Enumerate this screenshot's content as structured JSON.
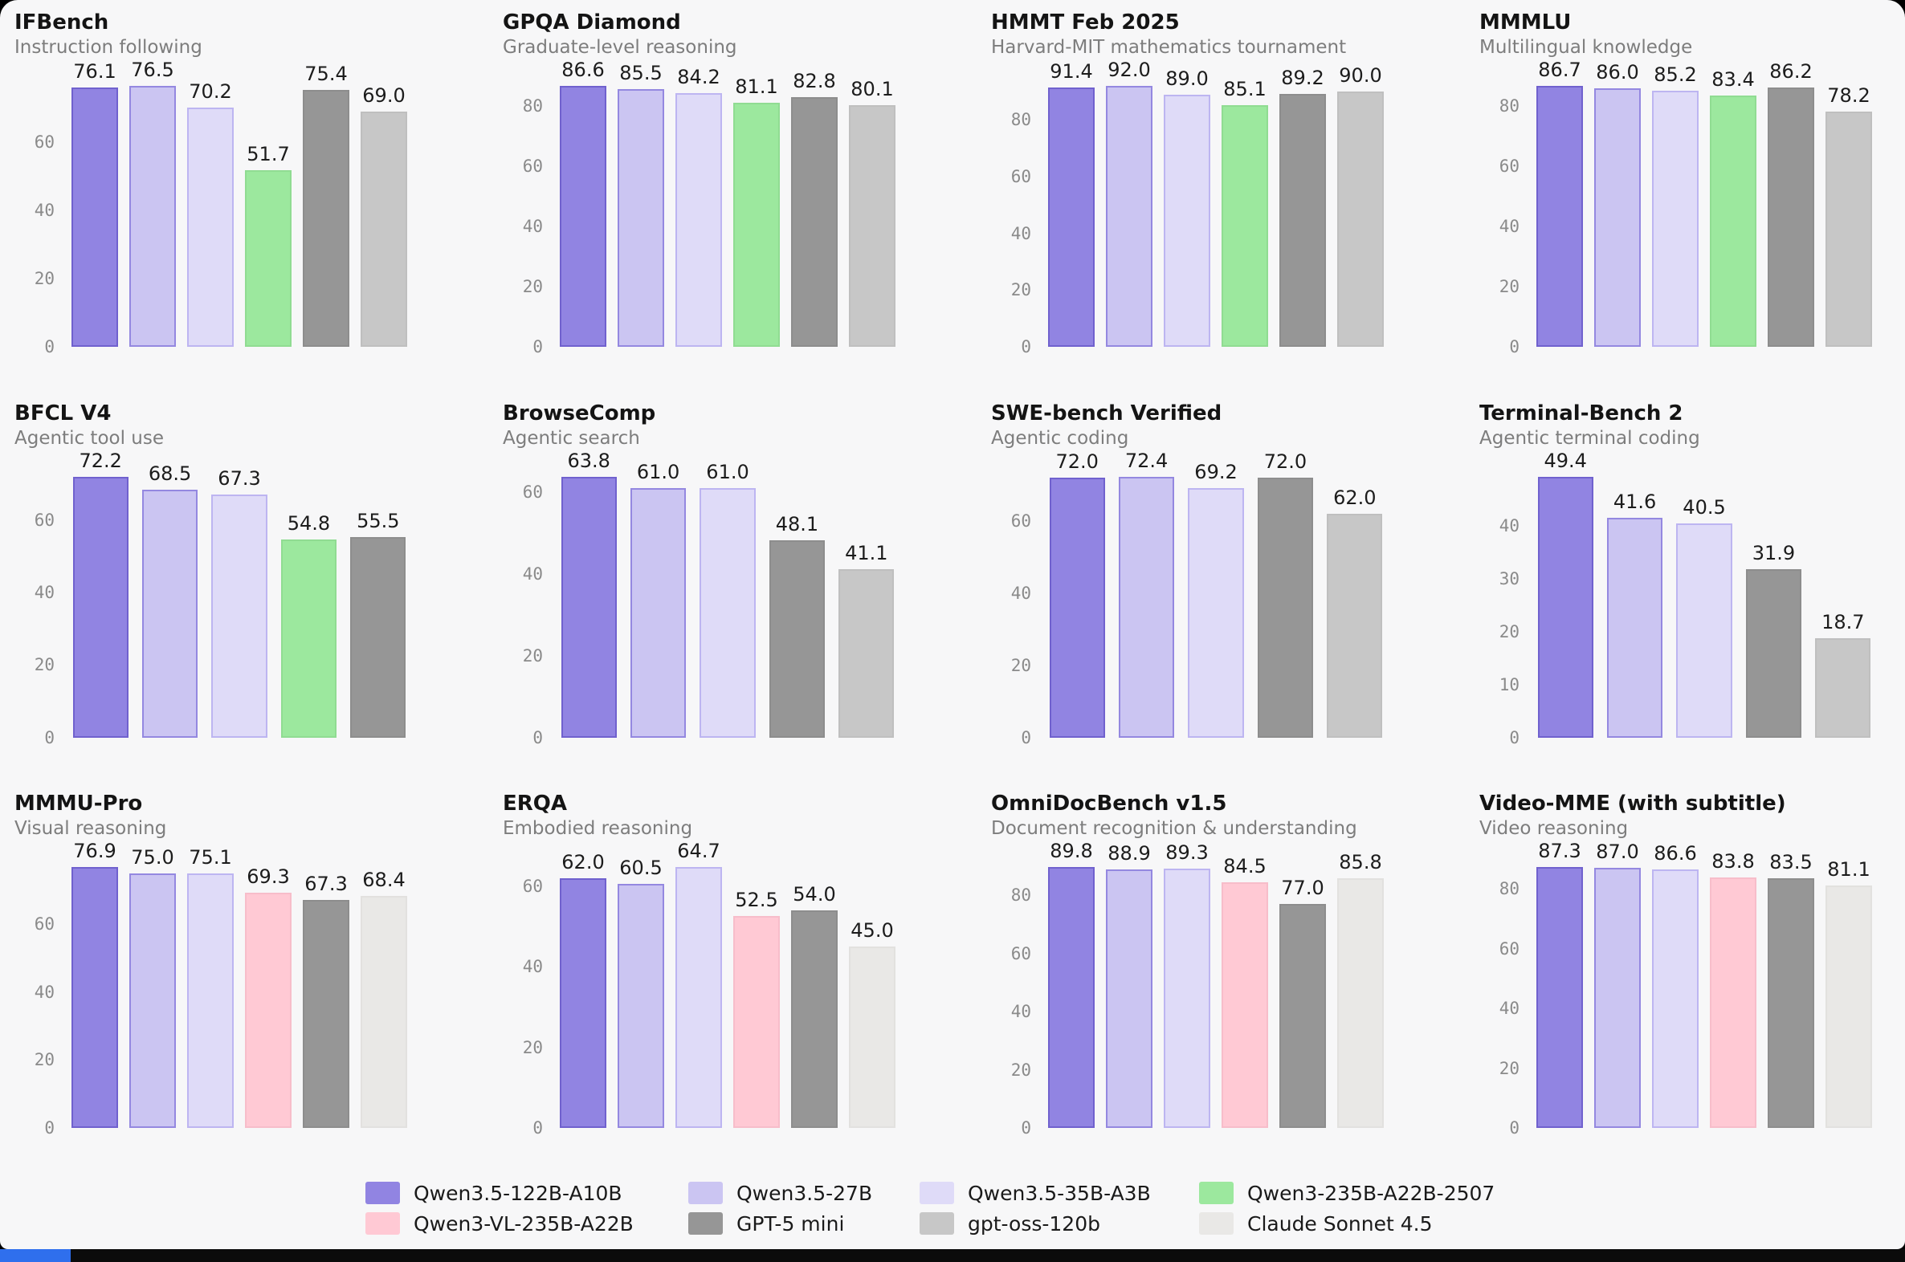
{
  "page": {
    "background": "#f7f7f8",
    "taskbar_color": "#0b0b0b",
    "taskbar_accent_color": "#2f6fed"
  },
  "models": [
    {
      "name": "Qwen3.5-122B-A10B",
      "fill": "#9184e2",
      "edge": "#7061ce"
    },
    {
      "name": "Qwen3.5-27B",
      "fill": "#cbc5f2",
      "edge": "#9488e0"
    },
    {
      "name": "Qwen3.5-35B-A3B",
      "fill": "#dfdbf8",
      "edge": "#bdb5f1"
    },
    {
      "name": "Qwen3-235B-A22B-2507",
      "fill": "#9ce89e",
      "edge": "#90dc92"
    },
    {
      "name": "Qwen3-VL-235B-A22B",
      "fill": "#ffc9d4",
      "edge": "#f7bdca"
    },
    {
      "name": "GPT-5 mini",
      "fill": "#969696",
      "edge": "#8d8d8d"
    },
    {
      "name": "gpt-oss-120b",
      "fill": "#c7c7c7",
      "edge": "#bfbfbf"
    },
    {
      "name": "Claude Sonnet 4.5",
      "fill": "#e9e8e6",
      "edge": "#e2e1df"
    }
  ],
  "chart_data": [
    {
      "type": "bar",
      "title": "IFBench",
      "subtitle": "Instruction following",
      "tick_step": 20,
      "categories": [
        "Qwen3.5-122B-A10B",
        "Qwen3.5-27B",
        "Qwen3.5-35B-A3B",
        "Qwen3-235B-A22B-2507",
        "GPT-5 mini",
        "gpt-oss-120b"
      ],
      "values": [
        76.1,
        76.5,
        70.2,
        51.7,
        75.4,
        69.0
      ]
    },
    {
      "type": "bar",
      "title": "GPQA Diamond",
      "subtitle": "Graduate-level reasoning",
      "tick_step": 20,
      "categories": [
        "Qwen3.5-122B-A10B",
        "Qwen3.5-27B",
        "Qwen3.5-35B-A3B",
        "Qwen3-235B-A22B-2507",
        "GPT-5 mini",
        "gpt-oss-120b"
      ],
      "values": [
        86.6,
        85.5,
        84.2,
        81.1,
        82.8,
        80.1
      ]
    },
    {
      "type": "bar",
      "title": "HMMT Feb 2025",
      "subtitle": "Harvard-MIT mathematics tournament",
      "tick_step": 20,
      "categories": [
        "Qwen3.5-122B-A10B",
        "Qwen3.5-27B",
        "Qwen3.5-35B-A3B",
        "Qwen3-235B-A22B-2507",
        "GPT-5 mini",
        "gpt-oss-120b"
      ],
      "values": [
        91.4,
        92.0,
        89.0,
        85.1,
        89.2,
        90.0
      ]
    },
    {
      "type": "bar",
      "title": "MMMLU",
      "subtitle": "Multilingual knowledge",
      "tick_step": 20,
      "categories": [
        "Qwen3.5-122B-A10B",
        "Qwen3.5-27B",
        "Qwen3.5-35B-A3B",
        "Qwen3-235B-A22B-2507",
        "GPT-5 mini",
        "gpt-oss-120b"
      ],
      "values": [
        86.7,
        86.0,
        85.2,
        83.4,
        86.2,
        78.2
      ]
    },
    {
      "type": "bar",
      "title": "BFCL V4",
      "subtitle": "Agentic tool use",
      "tick_step": 20,
      "categories": [
        "Qwen3.5-122B-A10B",
        "Qwen3.5-27B",
        "Qwen3.5-35B-A3B",
        "Qwen3-235B-A22B-2507",
        "GPT-5 mini"
      ],
      "values": [
        72.2,
        68.5,
        67.3,
        54.8,
        55.5
      ]
    },
    {
      "type": "bar",
      "title": "BrowseComp",
      "subtitle": "Agentic search",
      "tick_step": 20,
      "categories": [
        "Qwen3.5-122B-A10B",
        "Qwen3.5-27B",
        "Qwen3.5-35B-A3B",
        "GPT-5 mini",
        "gpt-oss-120b"
      ],
      "values": [
        63.8,
        61.0,
        61.0,
        48.1,
        41.1
      ]
    },
    {
      "type": "bar",
      "title": "SWE-bench Verified",
      "subtitle": "Agentic coding",
      "tick_step": 20,
      "categories": [
        "Qwen3.5-122B-A10B",
        "Qwen3.5-27B",
        "Qwen3.5-35B-A3B",
        "GPT-5 mini",
        "gpt-oss-120b"
      ],
      "values": [
        72.0,
        72.4,
        69.2,
        72.0,
        62.0
      ]
    },
    {
      "type": "bar",
      "title": "Terminal-Bench 2",
      "subtitle": "Agentic terminal coding",
      "tick_step": 10,
      "categories": [
        "Qwen3.5-122B-A10B",
        "Qwen3.5-27B",
        "Qwen3.5-35B-A3B",
        "GPT-5 mini",
        "gpt-oss-120b"
      ],
      "values": [
        49.4,
        41.6,
        40.5,
        31.9,
        18.7
      ]
    },
    {
      "type": "bar",
      "title": "MMMU-Pro",
      "subtitle": "Visual reasoning",
      "tick_step": 20,
      "categories": [
        "Qwen3.5-122B-A10B",
        "Qwen3.5-27B",
        "Qwen3.5-35B-A3B",
        "Qwen3-VL-235B-A22B",
        "GPT-5 mini",
        "Claude Sonnet 4.5"
      ],
      "values": [
        76.9,
        75.0,
        75.1,
        69.3,
        67.3,
        68.4
      ]
    },
    {
      "type": "bar",
      "title": "ERQA",
      "subtitle": "Embodied reasoning",
      "tick_step": 20,
      "categories": [
        "Qwen3.5-122B-A10B",
        "Qwen3.5-27B",
        "Qwen3.5-35B-A3B",
        "Qwen3-VL-235B-A22B",
        "GPT-5 mini",
        "Claude Sonnet 4.5"
      ],
      "values": [
        62.0,
        60.5,
        64.7,
        52.5,
        54.0,
        45.0
      ]
    },
    {
      "type": "bar",
      "title": "OmniDocBench v1.5",
      "subtitle": "Document recognition & understanding",
      "tick_step": 20,
      "categories": [
        "Qwen3.5-122B-A10B",
        "Qwen3.5-27B",
        "Qwen3.5-35B-A3B",
        "Qwen3-VL-235B-A22B",
        "GPT-5 mini",
        "Claude Sonnet 4.5"
      ],
      "values": [
        89.8,
        88.9,
        89.3,
        84.5,
        77.0,
        85.8
      ]
    },
    {
      "type": "bar",
      "title": "Video-MME (with subtitle)",
      "subtitle": "Video reasoning",
      "tick_step": 20,
      "categories": [
        "Qwen3.5-122B-A10B",
        "Qwen3.5-27B",
        "Qwen3.5-35B-A3B",
        "Qwen3-VL-235B-A22B",
        "GPT-5 mini",
        "Claude Sonnet 4.5"
      ],
      "values": [
        87.3,
        87.0,
        86.6,
        83.8,
        83.5,
        81.1
      ]
    }
  ],
  "layout_note": "3 rows x 4 columns of bar charts; legend bottom center"
}
